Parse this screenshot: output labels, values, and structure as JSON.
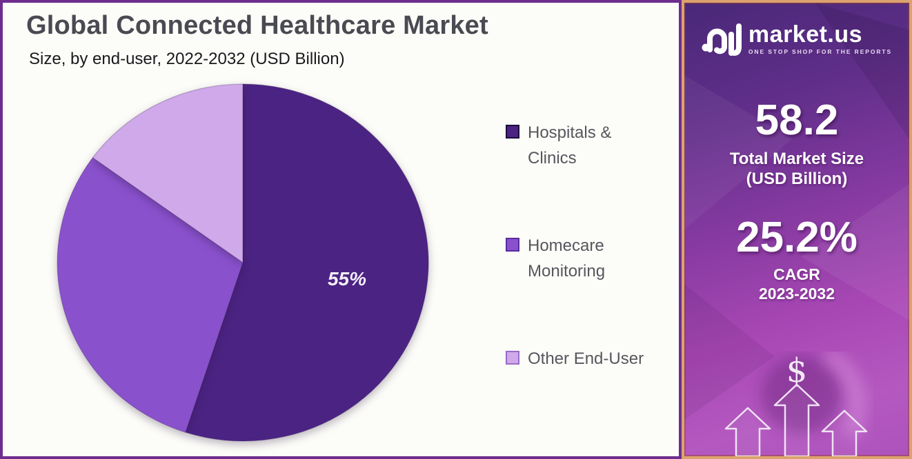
{
  "header": {
    "title": "Global Connected Healthcare Market",
    "subtitle": "Size, by end-user, 2022-2032 (USD Billion)"
  },
  "chart_data": {
    "type": "pie",
    "title": "Global Connected Healthcare Market Size, by end-user, 2022-2032 (USD Billion)",
    "direction": "clockwise",
    "start_angle_deg": 0,
    "legend_position": "right",
    "slices": [
      {
        "key": "hospitals-clinics",
        "label": "Hospitals & Clinics",
        "legend_lines": "Hospitals &\nClinics",
        "value": 55,
        "data_label": "55%",
        "color": "#4B2383",
        "swatch_border": "#1B0C38"
      },
      {
        "key": "homecare-monitoring",
        "label": "Homecare Monitoring",
        "legend_lines": "Homecare\nMonitoring",
        "value": 30,
        "data_label": "",
        "color": "#8A51CD",
        "swatch_border": "#5A2AA0"
      },
      {
        "key": "other-end-user",
        "label": "Other End-User",
        "legend_lines": "Other End-User",
        "value": 15,
        "data_label": "",
        "color": "#D0A9EA",
        "swatch_border": "#9A6AC8"
      }
    ]
  },
  "sidebar": {
    "brand": {
      "name": "market.us",
      "tagline": "ONE STOP SHOP FOR THE REPORTS"
    },
    "market_size": {
      "value": "58.2",
      "caption_line1": "Total Market Size",
      "caption_line2": "(USD Billion)"
    },
    "cagr": {
      "value": "25.2%",
      "caption_line1": "CAGR",
      "caption_line2": "2023-2032"
    },
    "dollar_symbol": "$"
  },
  "colors": {
    "panel_border": "#6E2E8E",
    "panel_bg": "#FCFCF8",
    "sidebar_border": "#DCA26E",
    "sidebar_gradient_top": "#4A2878",
    "sidebar_gradient_bottom": "#AE52BC",
    "title_text": "#4A4A52",
    "legend_text": "#56575D",
    "pie_label_text": "#F3EFF7"
  }
}
